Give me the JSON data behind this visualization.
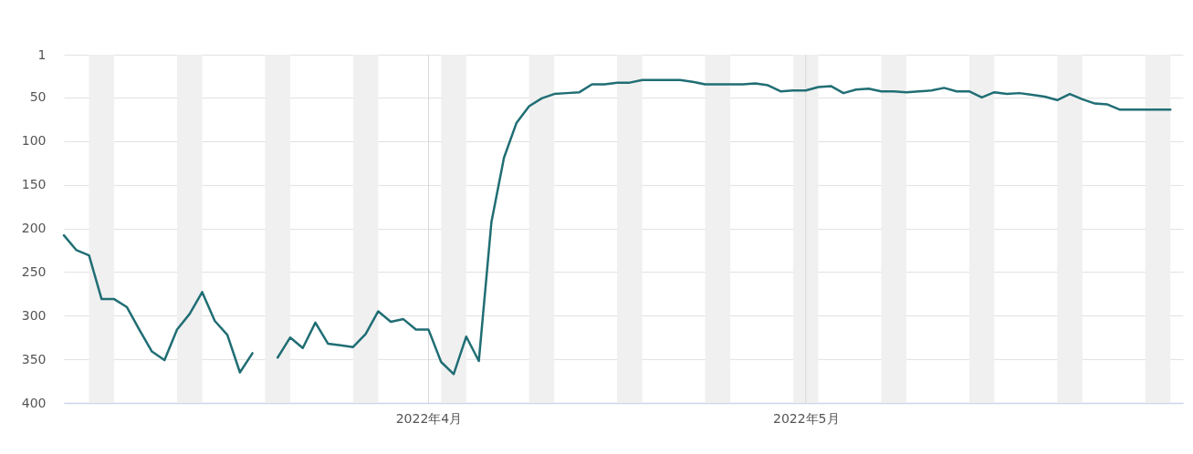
{
  "chart_data": {
    "type": "line",
    "x": [
      "2022-03-03",
      "2022-03-04",
      "2022-03-05",
      "2022-03-06",
      "2022-03-07",
      "2022-03-08",
      "2022-03-09",
      "2022-03-10",
      "2022-03-11",
      "2022-03-12",
      "2022-03-13",
      "2022-03-14",
      "2022-03-15",
      "2022-03-16",
      "2022-03-17",
      "2022-03-18",
      "2022-03-19",
      "2022-03-20",
      "2022-03-21",
      "2022-03-22",
      "2022-03-23",
      "2022-03-24",
      "2022-03-25",
      "2022-03-26",
      "2022-03-27",
      "2022-03-28",
      "2022-03-29",
      "2022-03-30",
      "2022-03-31",
      "2022-04-01",
      "2022-04-02",
      "2022-04-03",
      "2022-04-04",
      "2022-04-05",
      "2022-04-06",
      "2022-04-07",
      "2022-04-08",
      "2022-04-09",
      "2022-04-10",
      "2022-04-11",
      "2022-04-12",
      "2022-04-13",
      "2022-04-14",
      "2022-04-15",
      "2022-04-16",
      "2022-04-17",
      "2022-04-18",
      "2022-04-19",
      "2022-04-20",
      "2022-04-21",
      "2022-04-22",
      "2022-04-23",
      "2022-04-24",
      "2022-04-25",
      "2022-04-26",
      "2022-04-27",
      "2022-04-28",
      "2022-04-29",
      "2022-04-30",
      "2022-05-01",
      "2022-05-02",
      "2022-05-03",
      "2022-05-04",
      "2022-05-05",
      "2022-05-06",
      "2022-05-07",
      "2022-05-08",
      "2022-05-09",
      "2022-05-10",
      "2022-05-11",
      "2022-05-12",
      "2022-05-13",
      "2022-05-14",
      "2022-05-15",
      "2022-05-16",
      "2022-05-17",
      "2022-05-18",
      "2022-05-19",
      "2022-05-20",
      "2022-05-21",
      "2022-05-22",
      "2022-05-23",
      "2022-05-24",
      "2022-05-25",
      "2022-05-26",
      "2022-05-27",
      "2022-05-28",
      "2022-05-29",
      "2022-05-30"
    ],
    "series": [
      {
        "color": "#206e74",
        "values": [
          208,
          225,
          231,
          281,
          281,
          290,
          316,
          341,
          351,
          316,
          298,
          273,
          306,
          322,
          365,
          343,
          null,
          348,
          325,
          337,
          308,
          332,
          334,
          336,
          321,
          295,
          307,
          304,
          316,
          316,
          353,
          367,
          324,
          352,
          193,
          119,
          79,
          60,
          51,
          46,
          45,
          44,
          35,
          35,
          33,
          33,
          30,
          30,
          30,
          30,
          32,
          35,
          35,
          35,
          35,
          34,
          36,
          43,
          42,
          42,
          38,
          37,
          45,
          41,
          40,
          43,
          43,
          44,
          43,
          42,
          39,
          43,
          43,
          50,
          44,
          46,
          45,
          47,
          49,
          53,
          46,
          52,
          57,
          58,
          64,
          64,
          64,
          64,
          64
        ]
      }
    ],
    "xlim": [
      "2022-03-03",
      "2022-05-31"
    ],
    "xticks": [
      {
        "value": "2022-04-01",
        "label": "2022年4月"
      },
      {
        "value": "2022-05-01",
        "label": "2022年5月"
      }
    ],
    "ylim": [
      400,
      1
    ],
    "yticks": [
      1,
      50,
      100,
      150,
      200,
      250,
      300,
      350,
      400
    ],
    "grid": true,
    "bands": [
      {
        "axis": "x",
        "from": "2022-03-05",
        "to": "2022-03-07",
        "color": "#f0f0f0"
      },
      {
        "axis": "x",
        "from": "2022-03-12",
        "to": "2022-03-14",
        "color": "#f0f0f0"
      },
      {
        "axis": "x",
        "from": "2022-03-19",
        "to": "2022-03-21",
        "color": "#f0f0f0"
      },
      {
        "axis": "x",
        "from": "2022-03-26",
        "to": "2022-03-28",
        "color": "#f0f0f0"
      },
      {
        "axis": "x",
        "from": "2022-04-02",
        "to": "2022-04-04",
        "color": "#f0f0f0"
      },
      {
        "axis": "x",
        "from": "2022-04-09",
        "to": "2022-04-11",
        "color": "#f0f0f0"
      },
      {
        "axis": "x",
        "from": "2022-04-16",
        "to": "2022-04-18",
        "color": "#f0f0f0"
      },
      {
        "axis": "x",
        "from": "2022-04-23",
        "to": "2022-04-25",
        "color": "#f0f0f0"
      },
      {
        "axis": "x",
        "from": "2022-04-30",
        "to": "2022-05-02",
        "color": "#f0f0f0"
      },
      {
        "axis": "x",
        "from": "2022-05-07",
        "to": "2022-05-09",
        "color": "#f0f0f0"
      },
      {
        "axis": "x",
        "from": "2022-05-14",
        "to": "2022-05-16",
        "color": "#f0f0f0"
      },
      {
        "axis": "x",
        "from": "2022-05-21",
        "to": "2022-05-23",
        "color": "#f0f0f0"
      },
      {
        "axis": "x",
        "from": "2022-05-28",
        "to": "2022-05-30",
        "color": "#f0f0f0"
      }
    ]
  }
}
